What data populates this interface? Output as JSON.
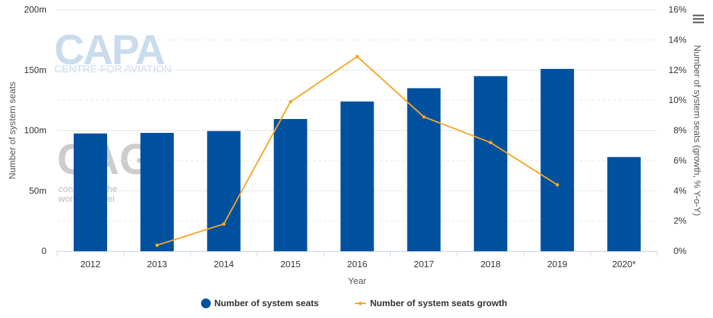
{
  "chart_data": {
    "type": "bar",
    "categories": [
      "2012",
      "2013",
      "2014",
      "2015",
      "2016",
      "2017",
      "2018",
      "2019",
      "2020*"
    ],
    "series": [
      {
        "name": "Number of system seats",
        "type": "bar",
        "axis": "left",
        "color": "#0050a0",
        "values": [
          97.5,
          98,
          99.5,
          109.5,
          124,
          135,
          145,
          151,
          78
        ]
      },
      {
        "name": "Number of system seats growth",
        "type": "line",
        "axis": "right",
        "color": "#f5a623",
        "values": [
          null,
          0.4,
          1.8,
          9.9,
          12.9,
          8.9,
          7.2,
          4.4,
          null
        ]
      }
    ],
    "xlabel": "Year",
    "ylabel": "Number of system seats",
    "y2label": "Number of system seats (growth, % Y-o-Y)",
    "ylim": [
      0,
      200
    ],
    "y2lim": [
      0,
      16
    ],
    "yticks": [
      "0",
      "50m",
      "100m",
      "150m",
      "200m"
    ],
    "y2ticks": [
      "0%",
      "2%",
      "4%",
      "6%",
      "8%",
      "10%",
      "12%",
      "14%",
      "16%"
    ],
    "grid": true,
    "legend_position": "bottom-center"
  },
  "watermarks": {
    "capa_main": "CAPA",
    "capa_sub": "CENTRE FOR AVIATION",
    "cag_main": "CAG",
    "cag_sub_line1": "connecting the",
    "cag_sub_line2": "world of travel"
  },
  "menu_icon": "hamburger-menu-icon"
}
